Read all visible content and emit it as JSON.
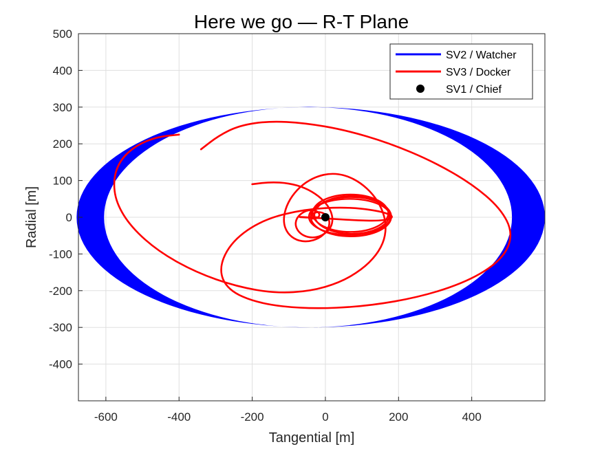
{
  "chart_data": {
    "type": "line",
    "title": "Here we go — R-T Plane",
    "xlabel": "Tangential [m]",
    "ylabel": "Radial [m]",
    "xlim": [
      -675,
      600
    ],
    "ylim": [
      -500,
      500
    ],
    "xticks": [
      -600,
      -400,
      -200,
      0,
      200,
      400
    ],
    "yticks": [
      500,
      400,
      300,
      200,
      100,
      0,
      -100,
      -200,
      -300,
      -400
    ],
    "grid": true,
    "legend_position": "top-right",
    "colors": {
      "watcher": "#0000ff",
      "docker": "#ff0000",
      "chief": "#000000"
    },
    "series": [
      {
        "name": "SV2 / Watcher",
        "kind": "band-ellipse",
        "center_x": -40,
        "center_y": 0,
        "outer_x_extent": [
          -680,
          600
        ],
        "inner_x_extent": [
          -605,
          510
        ],
        "y_extent": [
          -300,
          300
        ]
      },
      {
        "name": "SV3 / Docker",
        "kind": "spiral",
        "x": [
          -340,
          -292,
          -235,
          -154,
          -58,
          53,
          172,
          292,
          399,
          478,
          513,
          488,
          403,
          270,
          110,
          -50,
          -183,
          -268,
          -292,
          -255,
          -170,
          -57,
          56,
          143,
          184,
          179,
          142,
          80,
          10,
          -40,
          -69,
          -71,
          -55,
          -35,
          -23,
          -22,
          -28,
          -35,
          -38,
          -37,
          -36
        ],
        "y": [
          185,
          222,
          250,
          262,
          257,
          238,
          203,
          153,
          92,
          25,
          -43,
          -110,
          -169,
          -215,
          -243,
          -250,
          -235,
          -198,
          -138,
          -64,
          -6,
          22,
          28,
          18,
          5,
          -5,
          -10,
          -8,
          -4,
          -1,
          0,
          1,
          0,
          -1,
          -1,
          0,
          0,
          0,
          0,
          0,
          0
        ],
        "extra_paths": [
          {
            "x": [
              -400,
              -460,
              -517,
              -561,
              -580,
              -572,
              -530,
              -455,
              -354,
              -242,
              -135,
              -40,
              39,
              99,
              140,
              162,
              166,
              154,
              130,
              96,
              57,
              16,
              -25,
              -62,
              -92,
              -110,
              -115,
              -104,
              -79,
              -48,
              -18,
              3,
              12,
              9,
              -2,
              -17,
              -30,
              -38,
              -40,
              -37,
              -36
            ],
            "y": [
              225,
              219,
              196,
              156,
              103,
              39,
              -28,
              -94,
              -150,
              -189,
              -207,
              -201,
              -178,
              -143,
              -103,
              -61,
              -17,
              25,
              63,
              94,
              114,
              120,
              111,
              90,
              58,
              22,
              -14,
              -44,
              -63,
              -67,
              -58,
              -40,
              -20,
              -2,
              10,
              15,
              12,
              6,
              2,
              0,
              0
            ]
          },
          {
            "x": [
              -200,
              -150,
              -100,
              -55,
              -18,
              8,
              20,
              18,
              2,
              -22,
              -48,
              -70,
              -82,
              -80,
              -66,
              -46,
              -28,
              -17,
              -16,
              -24,
              -34,
              -40,
              -40,
              -36
            ],
            "y": [
              90,
              96,
              93,
              80,
              58,
              31,
              3,
              -23,
              -43,
              -55,
              -55,
              -44,
              -25,
              -5,
              11,
              20,
              19,
              12,
              3,
              -3,
              -4,
              -2,
              0,
              0
            ]
          }
        ]
      },
      {
        "name": "SV1 / Chief",
        "kind": "marker",
        "x": [
          0
        ],
        "y": [
          0
        ]
      }
    ]
  }
}
